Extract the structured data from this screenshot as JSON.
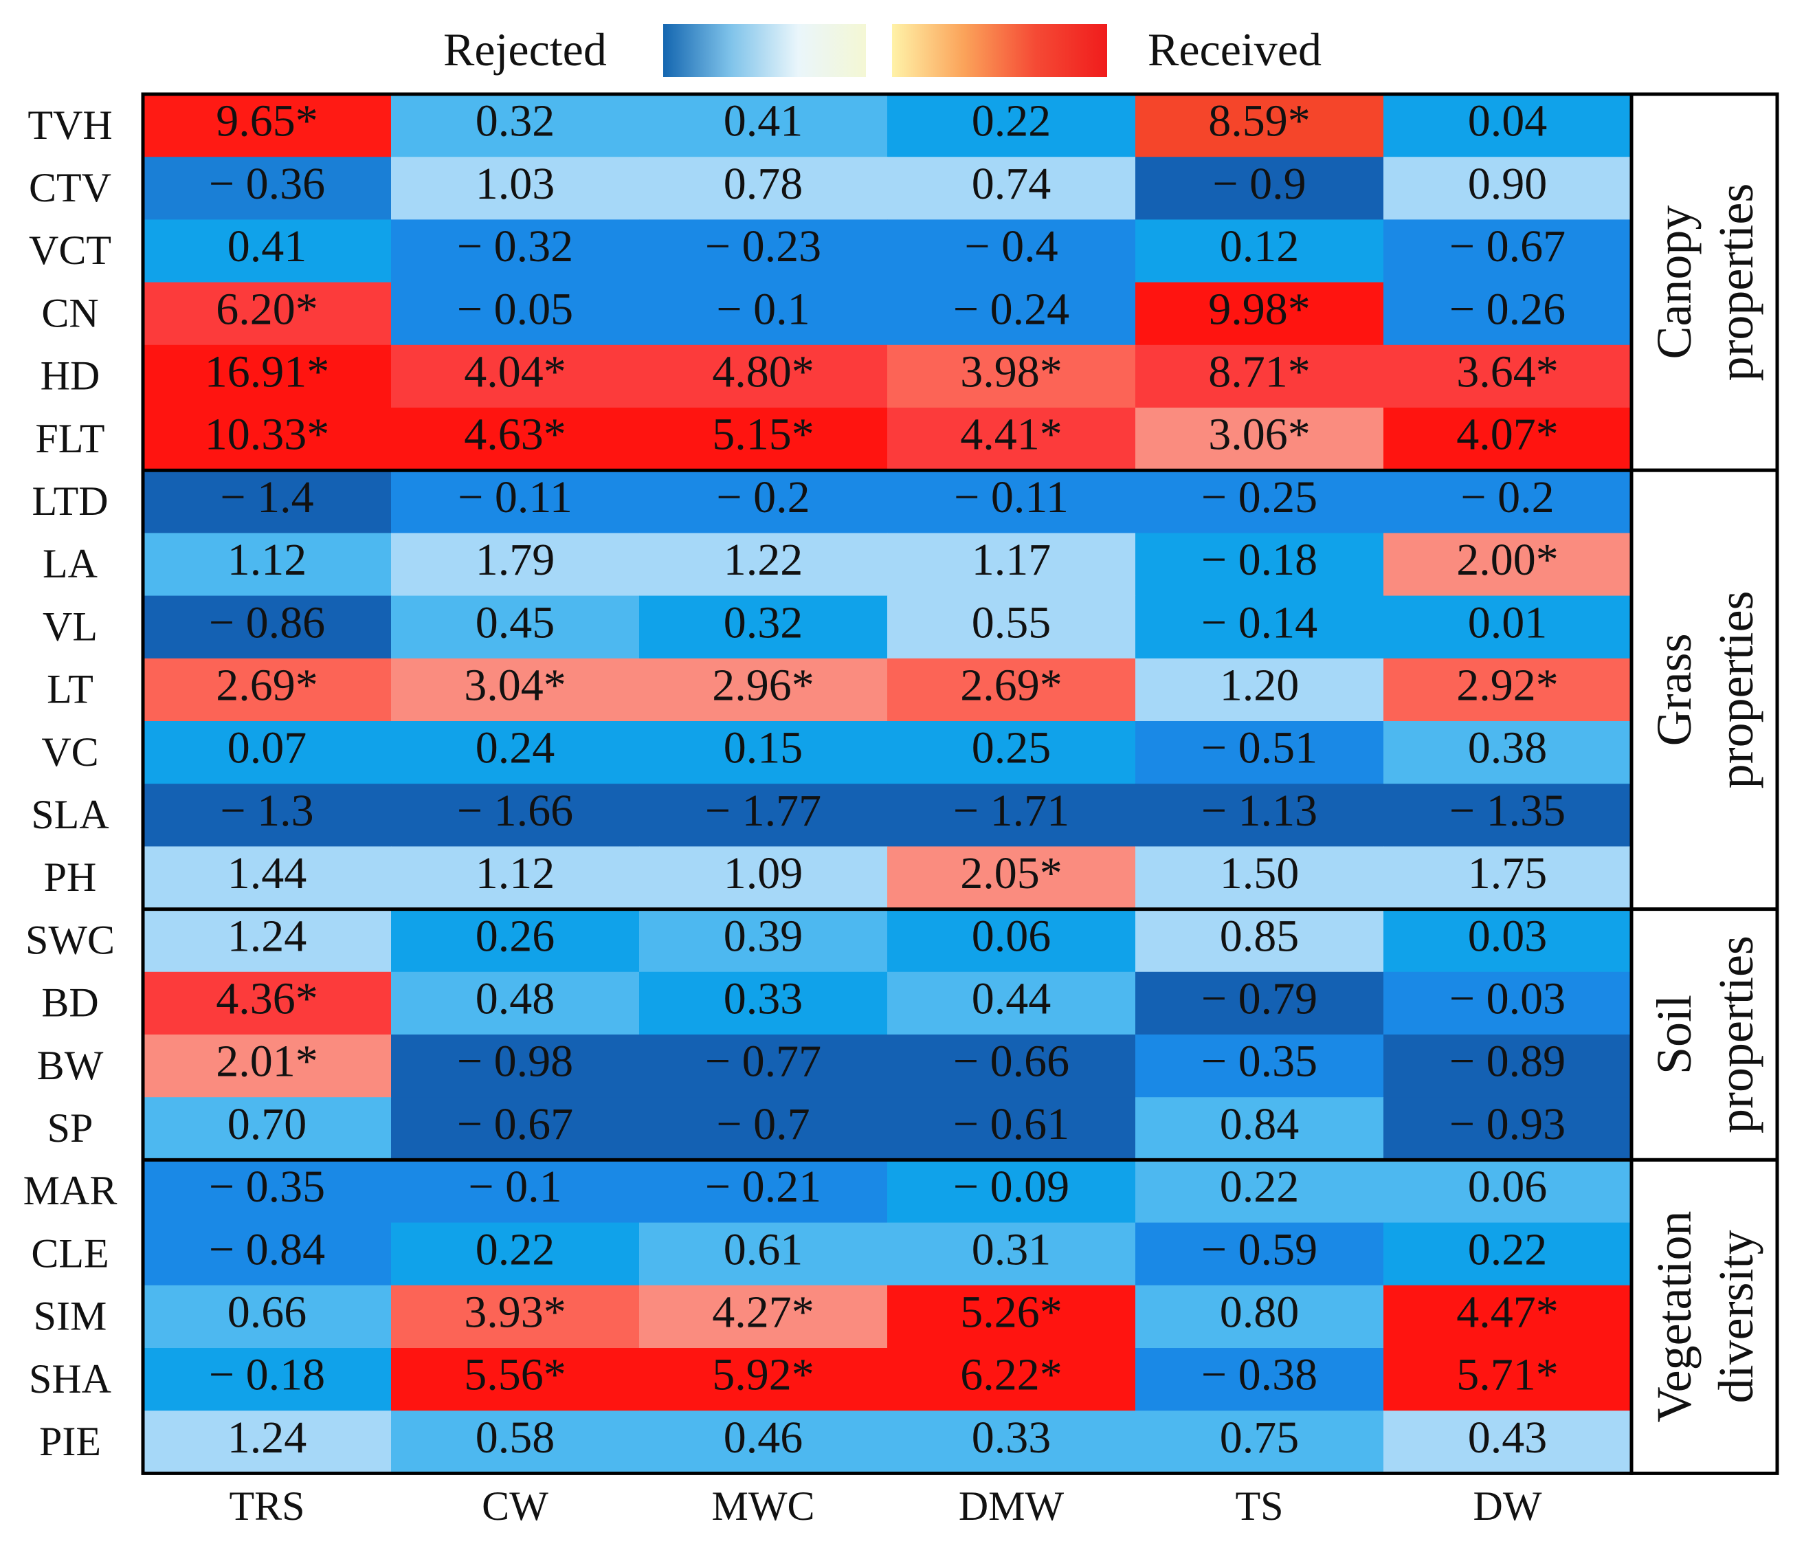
{
  "chart_data": {
    "type": "heatmap",
    "title": "",
    "legend": {
      "low_label": "Rejected",
      "high_label": "Received"
    },
    "columns": [
      "TRS",
      "CW",
      "MWC",
      "DMW",
      "TS",
      "DW"
    ],
    "rows": [
      "TVH",
      "CTV",
      "VCT",
      "CN",
      "HD",
      "FLT",
      "LTD",
      "LA",
      "VL",
      "LT",
      "VC",
      "SLA",
      "PH",
      "SWC",
      "BD",
      "BW",
      "SP",
      "MAR",
      "CLE",
      "SIM",
      "SHA",
      "PIE"
    ],
    "labels": [
      [
        "9.65*",
        "0.32",
        "0.41",
        "0.22",
        "8.59*",
        "0.04"
      ],
      [
        "− 0.36",
        "1.03",
        "0.78",
        "0.74",
        "− 0.9",
        "0.90"
      ],
      [
        "0.41",
        "− 0.32",
        "− 0.23",
        "− 0.4",
        "0.12",
        "− 0.67"
      ],
      [
        "6.20*",
        "− 0.05",
        "− 0.1",
        "− 0.24",
        "9.98*",
        "− 0.26"
      ],
      [
        "16.91*",
        "4.04*",
        "4.80*",
        "3.98*",
        "8.71*",
        "3.64*"
      ],
      [
        "10.33*",
        "4.63*",
        "5.15*",
        "4.41*",
        "3.06*",
        "4.07*"
      ],
      [
        "− 1.4",
        "− 0.11",
        "− 0.2",
        "− 0.11",
        "− 0.25",
        "− 0.2"
      ],
      [
        "1.12",
        "1.79",
        "1.22",
        "1.17",
        "− 0.18",
        "2.00*"
      ],
      [
        "− 0.86",
        "0.45",
        "0.32",
        "0.55",
        "− 0.14",
        "0.01"
      ],
      [
        "2.69*",
        "3.04*",
        "2.96*",
        "2.69*",
        "1.20",
        "2.92*"
      ],
      [
        "0.07",
        "0.24",
        "0.15",
        "0.25",
        "− 0.51",
        "0.38"
      ],
      [
        "− 1.3",
        "− 1.66",
        "− 1.77",
        "− 1.71",
        "− 1.13",
        "− 1.35"
      ],
      [
        "1.44",
        "1.12",
        "1.09",
        "2.05*",
        "1.50",
        "1.75"
      ],
      [
        "1.24",
        "0.26",
        "0.39",
        "0.06",
        "0.85",
        "0.03"
      ],
      [
        "4.36*",
        "0.48",
        "0.33",
        "0.44",
        "− 0.79",
        "− 0.03"
      ],
      [
        "2.01*",
        "− 0.98",
        "− 0.77",
        "− 0.66",
        "− 0.35",
        "− 0.89"
      ],
      [
        "0.70",
        "− 0.67",
        "− 0.7",
        "− 0.61",
        "0.84",
        "− 0.93"
      ],
      [
        "− 0.35",
        "− 0.1",
        "− 0.21",
        "− 0.09",
        "0.22",
        "0.06"
      ],
      [
        "− 0.84",
        "0.22",
        "0.61",
        "0.31",
        "− 0.59",
        "0.22"
      ],
      [
        "0.66",
        "3.93*",
        "4.27*",
        "5.26*",
        "0.80",
        "4.47*"
      ],
      [
        "− 0.18",
        "5.56*",
        "5.92*",
        "6.22*",
        "− 0.38",
        "5.71*"
      ],
      [
        "1.24",
        "0.58",
        "0.46",
        "0.33",
        "0.75",
        "0.43"
      ]
    ],
    "colors": [
      [
        "#ff1a14",
        "#4db8f0",
        "#4db8f0",
        "#10a2ea",
        "#f5452a",
        "#10a2ea"
      ],
      [
        "#1a7fd6",
        "#a6d8f8",
        "#a6d8f8",
        "#a6d8f8",
        "#1461b3",
        "#a6d8f8"
      ],
      [
        "#10a2ea",
        "#1a89e6",
        "#1a89e6",
        "#1a89e6",
        "#10a2ea",
        "#1a89e6"
      ],
      [
        "#fc3b3b",
        "#1a89e6",
        "#1a89e6",
        "#1a89e6",
        "#ff1410",
        "#1a89e6"
      ],
      [
        "#ff1410",
        "#fc3b3b",
        "#fc3b3b",
        "#fc6456",
        "#fc3b3b",
        "#fc3b3b"
      ],
      [
        "#ff1410",
        "#ff1410",
        "#ff1410",
        "#fc3b3b",
        "#fa8c7f",
        "#ff1410"
      ],
      [
        "#1461b3",
        "#1a89e6",
        "#1a89e6",
        "#1a89e6",
        "#1a89e6",
        "#1a89e6"
      ],
      [
        "#4db8f0",
        "#a6d8f8",
        "#a6d8f8",
        "#a6d8f8",
        "#10a2ea",
        "#fa8c7f"
      ],
      [
        "#1461b3",
        "#4db8f0",
        "#10a2ea",
        "#a6d8f8",
        "#10a2ea",
        "#10a2ea"
      ],
      [
        "#fc6456",
        "#fa8c7f",
        "#fa8c7f",
        "#fc6456",
        "#a6d8f8",
        "#fc6456"
      ],
      [
        "#10a2ea",
        "#10a2ea",
        "#10a2ea",
        "#10a2ea",
        "#1a89e6",
        "#4db8f0"
      ],
      [
        "#1461b3",
        "#1461b3",
        "#1461b3",
        "#1461b3",
        "#1461b3",
        "#1461b3"
      ],
      [
        "#a6d8f8",
        "#a6d8f8",
        "#a6d8f8",
        "#fa8c7f",
        "#a6d8f8",
        "#a6d8f8"
      ],
      [
        "#a6d8f8",
        "#10a2ea",
        "#4db8f0",
        "#10a2ea",
        "#a6d8f8",
        "#10a2ea"
      ],
      [
        "#fc3b3b",
        "#4db8f0",
        "#10a2ea",
        "#4db8f0",
        "#1461b3",
        "#1a89e6"
      ],
      [
        "#fa8c7f",
        "#1461b3",
        "#1461b3",
        "#1461b3",
        "#1a89e6",
        "#1461b3"
      ],
      [
        "#4db8f0",
        "#1461b3",
        "#1461b3",
        "#1461b3",
        "#4db8f0",
        "#1461b3"
      ],
      [
        "#1a89e6",
        "#1a89e6",
        "#1a89e6",
        "#10a2ea",
        "#4db8f0",
        "#4db8f0"
      ],
      [
        "#1a89e6",
        "#10a2ea",
        "#4db8f0",
        "#4db8f0",
        "#1a89e6",
        "#10a2ea"
      ],
      [
        "#4db8f0",
        "#fc6456",
        "#fa8c7f",
        "#ff1410",
        "#4db8f0",
        "#ff1410"
      ],
      [
        "#10a2ea",
        "#ff1410",
        "#ff1410",
        "#ff1410",
        "#1a89e6",
        "#ff1410"
      ],
      [
        "#a6d8f8",
        "#4db8f0",
        "#4db8f0",
        "#4db8f0",
        "#4db8f0",
        "#a6d8f8"
      ]
    ],
    "groups": [
      {
        "name": "Canopy properties",
        "line1": "Canopy",
        "line2": "properties",
        "row_start": 0,
        "row_end": 5
      },
      {
        "name": "Grass properties",
        "line1": "Grass",
        "line2": "properties",
        "row_start": 6,
        "row_end": 12
      },
      {
        "name": "Soil properties",
        "line1": "Soil",
        "line2": "properties",
        "row_start": 13,
        "row_end": 16
      },
      {
        "name": "Vegetation diversity",
        "line1": "Vegetation",
        "line2": "diversity",
        "row_start": 17,
        "row_end": 21
      }
    ],
    "gradient": {
      "rejected": [
        "#1466b0",
        "#7fc3ea",
        "#eaf6fb",
        "#f4f7d4"
      ],
      "received": [
        "#fff2a8",
        "#fba35a",
        "#f54a35",
        "#f01c1c"
      ]
    }
  }
}
